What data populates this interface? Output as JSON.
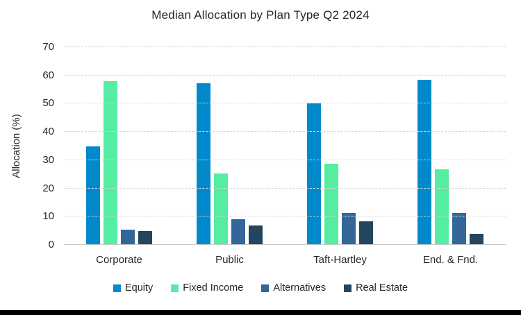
{
  "chart_data": {
    "type": "bar",
    "title": "Median Allocation by Plan Type Q2 2024",
    "xlabel": "",
    "ylabel": "Allocation (%)",
    "categories": [
      "Corporate",
      "Public",
      "Taft-Hartley",
      "End. & Fnd."
    ],
    "series": [
      {
        "name": "Equity",
        "color": "#0289CB",
        "values": [
          35.0,
          57.3,
          50.2,
          58.5
        ]
      },
      {
        "name": "Fixed Income",
        "color": "#55EDA2",
        "values": [
          58.0,
          25.3,
          28.7,
          26.8
        ]
      },
      {
        "name": "Alternatives",
        "color": "#336699",
        "values": [
          5.5,
          9.2,
          11.3,
          11.2
        ]
      },
      {
        "name": "Real Estate",
        "color": "#24455E",
        "values": [
          4.8,
          6.8,
          8.4,
          4.0
        ]
      }
    ],
    "ylim": [
      0,
      70
    ],
    "ytick_step": 10,
    "grid": true,
    "legend_position": "bottom"
  },
  "page": {
    "bottom_bar_color": "#000000"
  }
}
